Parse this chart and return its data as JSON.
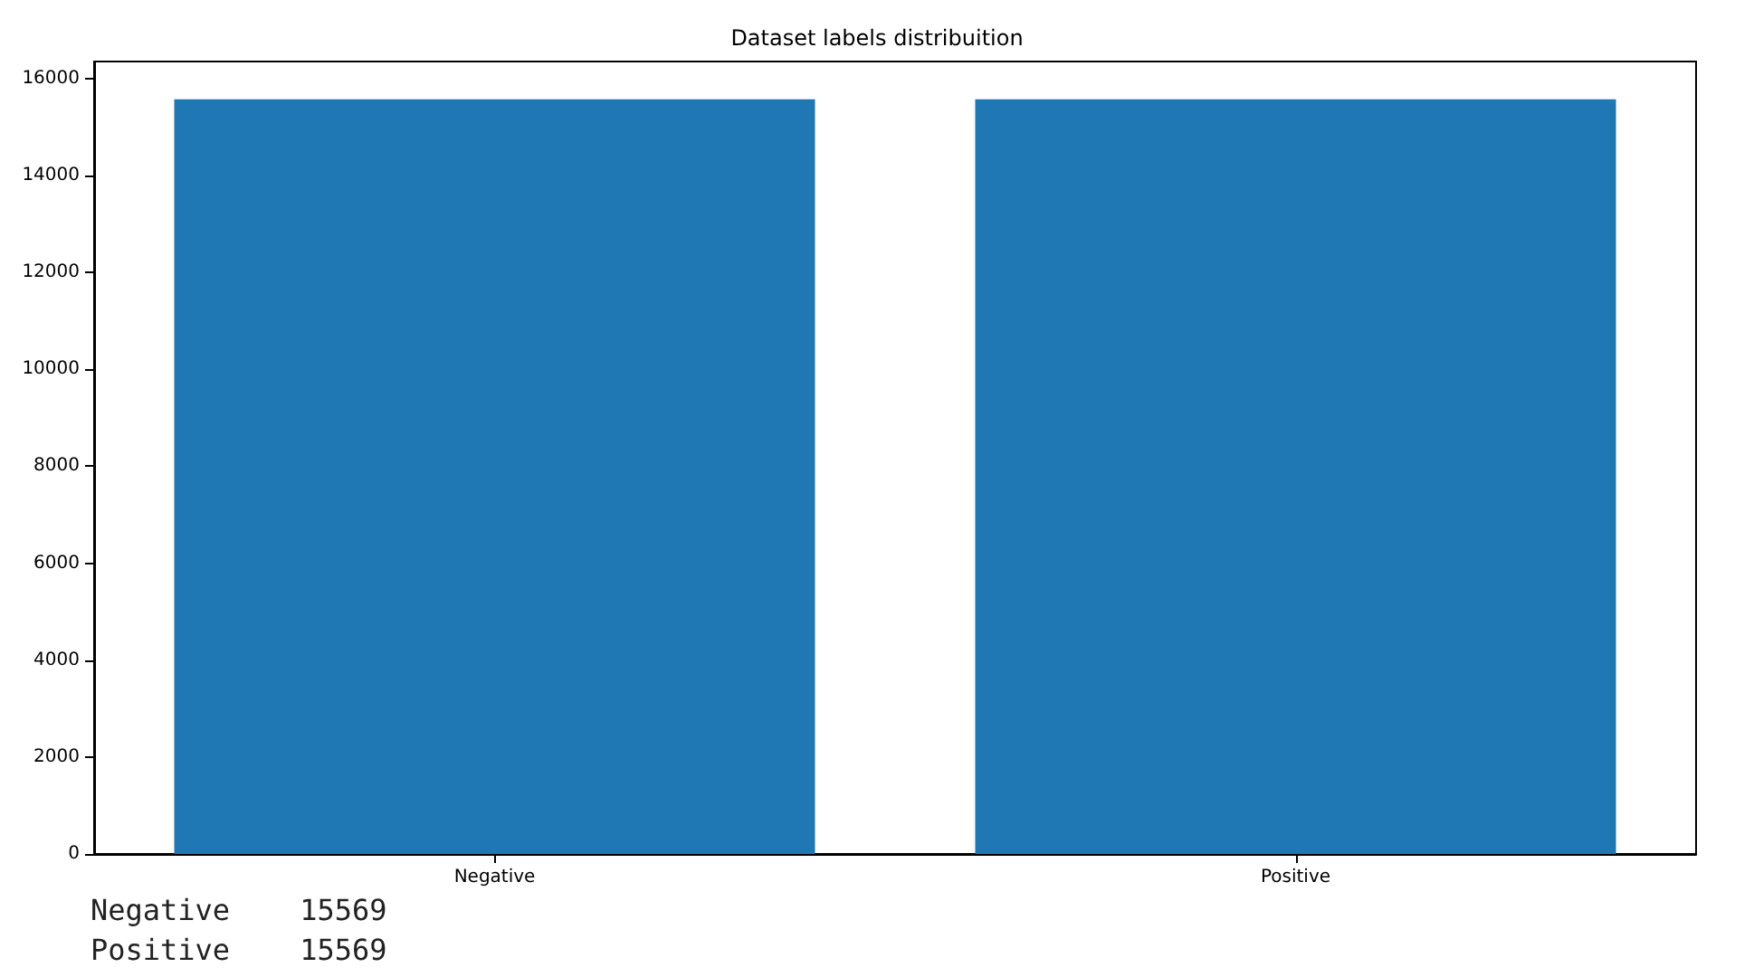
{
  "chart_data": {
    "type": "bar",
    "title": "Dataset labels distribuition",
    "categories": [
      "Negative",
      "Positive"
    ],
    "values": [
      15569,
      15569
    ],
    "color": "#1f77b4",
    "ylim": [
      0,
      16350
    ],
    "yticks": [
      0,
      2000,
      4000,
      6000,
      8000,
      10000,
      12000,
      14000,
      16000
    ],
    "grid": false,
    "annotations": [
      "Negative    15569",
      "Positive    15569"
    ]
  }
}
